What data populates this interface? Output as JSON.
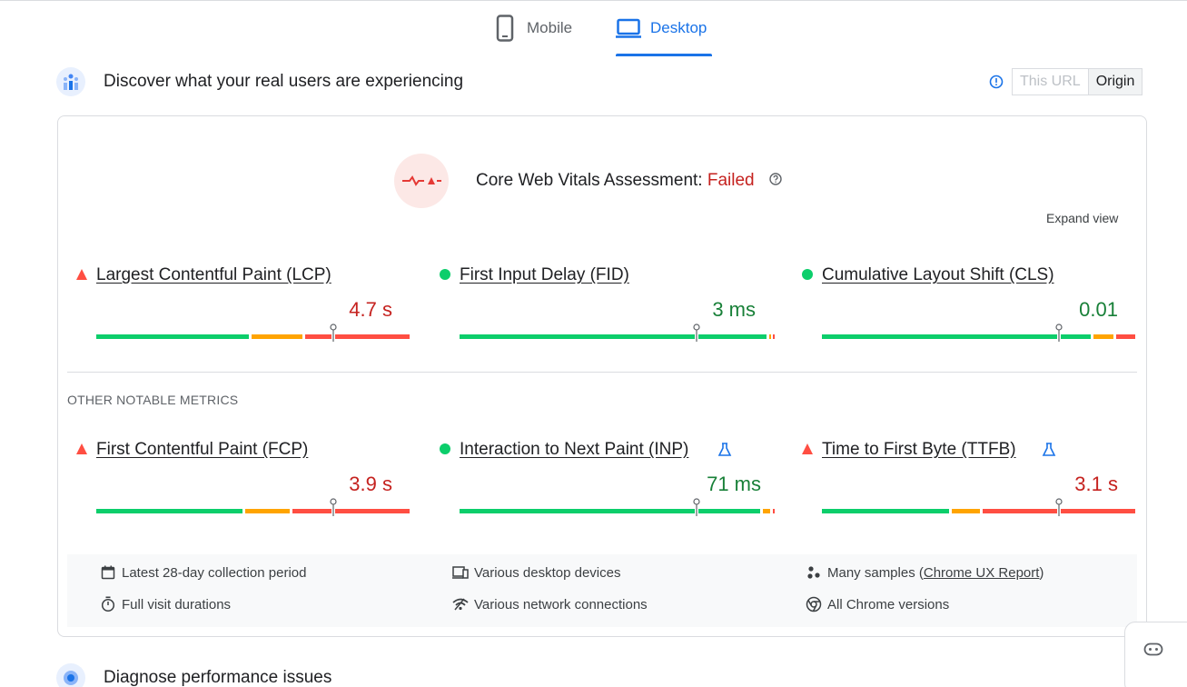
{
  "tabs": [
    {
      "label": "Mobile",
      "icon": "phone-icon",
      "active": false
    },
    {
      "label": "Desktop",
      "icon": "laptop-icon",
      "active": true
    }
  ],
  "field_section": {
    "title": "Discover what your real users are experiencing",
    "toggle": {
      "this_url": "This URL",
      "origin": "Origin",
      "selected": "Origin"
    }
  },
  "cwv": {
    "label": "Core Web Vitals Assessment:",
    "status": "Failed",
    "expand": "Expand view"
  },
  "core_metrics": [
    {
      "name": "Largest Contentful Paint (LCP)",
      "value": "4.7 s",
      "rating": "poor",
      "distribution": [
        0.49,
        0.17,
        0.34
      ],
      "marker": 0.75
    },
    {
      "name": "First Input Delay (FID)",
      "value": "3 ms",
      "rating": "good",
      "distribution": [
        0.98,
        0.01,
        0.01
      ],
      "marker": 0.75
    },
    {
      "name": "Cumulative Layout Shift (CLS)",
      "value": "0.01",
      "rating": "good",
      "distribution": [
        0.86,
        0.07,
        0.07
      ],
      "marker": 0.75
    }
  ],
  "other_label": "OTHER NOTABLE METRICS",
  "other_metrics": [
    {
      "name": "First Contentful Paint (FCP)",
      "value": "3.9 s",
      "rating": "poor",
      "lab": false,
      "distribution": [
        0.47,
        0.15,
        0.38
      ],
      "marker": 0.75
    },
    {
      "name": "Interaction to Next Paint (INP)",
      "value": "71 ms",
      "rating": "good",
      "lab": true,
      "distribution": [
        0.96,
        0.03,
        0.01
      ],
      "marker": 0.75
    },
    {
      "name": "Time to First Byte (TTFB)",
      "value": "3.1 s",
      "rating": "poor",
      "lab": true,
      "distribution": [
        0.41,
        0.1,
        0.49
      ],
      "marker": 0.75
    }
  ],
  "meta": {
    "period": "Latest 28-day collection period",
    "devices": "Various desktop devices",
    "samples_prefix": "Many samples (",
    "samples_link": "Chrome UX Report",
    "samples_suffix": ")",
    "durations": "Full visit durations",
    "network": "Various network connections",
    "chrome": "All Chrome versions"
  },
  "diagnose_section": {
    "title": "Diagnose performance issues"
  },
  "colors": {
    "good": "#0cce6b",
    "needs_improvement": "#ffa400",
    "poor": "#ff4e42",
    "accent": "#1a73e8"
  }
}
